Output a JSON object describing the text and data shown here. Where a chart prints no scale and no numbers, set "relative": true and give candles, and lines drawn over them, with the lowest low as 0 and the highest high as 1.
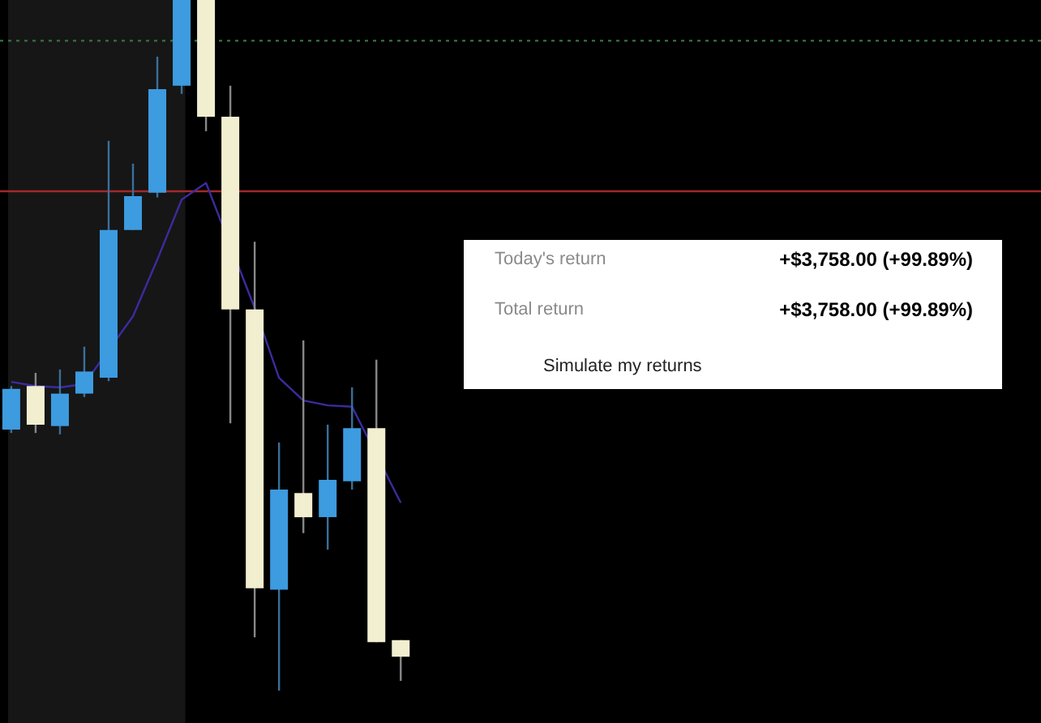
{
  "chart_data": {
    "type": "candlestick",
    "relative": true,
    "categories": [
      null,
      null,
      null,
      null,
      null,
      null,
      null,
      null,
      null,
      null,
      null,
      null,
      null,
      null,
      null,
      null,
      null
    ],
    "ohlc": [
      [
        0.378,
        0.441,
        0.373,
        0.437
      ],
      [
        0.441,
        0.46,
        0.373,
        0.385
      ],
      [
        0.383,
        0.465,
        0.371,
        0.43
      ],
      [
        0.43,
        0.498,
        0.425,
        0.462
      ],
      [
        0.453,
        0.796,
        0.448,
        0.667
      ],
      [
        0.667,
        0.763,
        0.667,
        0.716
      ],
      [
        0.721,
        0.918,
        0.714,
        0.871
      ],
      [
        0.876,
        1,
        0.864,
        1
      ],
      [
        1,
        1,
        0.81,
        0.831
      ],
      [
        0.831,
        0.876,
        0.387,
        0.552
      ],
      [
        0.552,
        0.65,
        0.077,
        0.148
      ],
      [
        0.146,
        0.359,
        0,
        0.291
      ],
      [
        0.286,
        0.507,
        0.228,
        0.251
      ],
      [
        0.251,
        0.385,
        0.204,
        0.305
      ],
      [
        0.303,
        0.439,
        0.291,
        0.38
      ],
      [
        0.38,
        0.479,
        0.07,
        0.07
      ],
      [
        0.073,
        0.073,
        0.014,
        0.049
      ]
    ],
    "colors": [
      "#3d9be0",
      "#f2eed0",
      "#3d9be0",
      "#3d9be0",
      "#3d9be0",
      "#3d9be0",
      "#3d9be0",
      "#3d9be0",
      "#f2eed0",
      "#f2eed0",
      "#f2eed0",
      "#3d9be0",
      "#f2eed0",
      "#3d9be0",
      "#3d9be0",
      "#f2eed0",
      "#f2eed0"
    ],
    "series": [
      {
        "type": "line",
        "color": "#3b2c9e",
        "values": [
          0.447,
          0.441,
          0.439,
          0.444,
          null,
          0.542,
          0.624,
          0.711,
          0.735,
          null,
          0.554,
          0.453,
          0.42,
          0.413,
          0.411,
          null,
          0.272
        ]
      }
    ],
    "ref_lines": [
      {
        "axis": "y",
        "value": 0.941,
        "color": "#2e6b3a",
        "line_style": "dotted"
      },
      {
        "axis": "y",
        "value": 0.723,
        "color": "#a3282a",
        "line_style": "solid"
      }
    ],
    "annotations": [
      "Today's return",
      "+$3,758.00 (+99.89%)",
      "Total return",
      "+$3,758.00 (+99.89%)",
      "Simulate my returns"
    ]
  }
}
